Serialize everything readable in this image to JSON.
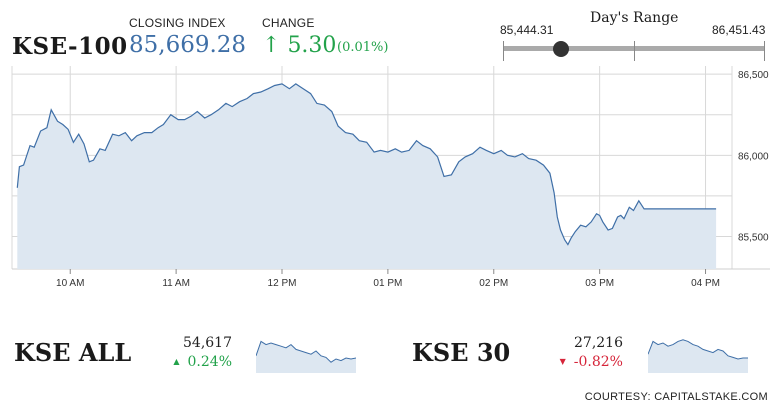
{
  "header": {
    "ticker": "KSE-100",
    "closing_label": "CLOSING INDEX",
    "closing_value": "85,669.28",
    "change_label": "CHANGE",
    "change_arrow": "↑",
    "change_value": "5.30",
    "change_percent": "(0.01%)"
  },
  "days_range": {
    "title": "Day's Range",
    "low": "85,444.31",
    "high": "86,451.43",
    "current_fraction": 0.22
  },
  "chart_data": {
    "type": "area",
    "y_ticks": [
      "86,500",
      "86,000",
      "85,500"
    ],
    "x_ticks": [
      "10 AM",
      "11 AM",
      "12 PM",
      "01 PM",
      "02 PM",
      "03 PM",
      "04 PM"
    ],
    "ylim": [
      85300,
      86550
    ],
    "grid": true,
    "points": [
      [
        9.5,
        85800
      ],
      [
        9.52,
        85930
      ],
      [
        9.56,
        85940
      ],
      [
        9.62,
        86060
      ],
      [
        9.66,
        86050
      ],
      [
        9.72,
        86150
      ],
      [
        9.78,
        86170
      ],
      [
        9.82,
        86280
      ],
      [
        9.88,
        86210
      ],
      [
        9.93,
        86190
      ],
      [
        9.98,
        86160
      ],
      [
        10.03,
        86080
      ],
      [
        10.08,
        86130
      ],
      [
        10.13,
        86070
      ],
      [
        10.18,
        85960
      ],
      [
        10.22,
        85970
      ],
      [
        10.28,
        86040
      ],
      [
        10.33,
        86030
      ],
      [
        10.4,
        86130
      ],
      [
        10.46,
        86120
      ],
      [
        10.52,
        86140
      ],
      [
        10.58,
        86090
      ],
      [
        10.63,
        86120
      ],
      [
        10.7,
        86140
      ],
      [
        10.77,
        86140
      ],
      [
        10.83,
        86170
      ],
      [
        10.88,
        86190
      ],
      [
        10.95,
        86250
      ],
      [
        11.02,
        86220
      ],
      [
        11.08,
        86220
      ],
      [
        11.14,
        86240
      ],
      [
        11.2,
        86270
      ],
      [
        11.27,
        86230
      ],
      [
        11.33,
        86250
      ],
      [
        11.4,
        86280
      ],
      [
        11.47,
        86320
      ],
      [
        11.53,
        86300
      ],
      [
        11.6,
        86330
      ],
      [
        11.67,
        86350
      ],
      [
        11.73,
        86380
      ],
      [
        11.8,
        86390
      ],
      [
        11.87,
        86410
      ],
      [
        11.93,
        86430
      ],
      [
        12.0,
        86440
      ],
      [
        12.07,
        86410
      ],
      [
        12.13,
        86440
      ],
      [
        12.2,
        86410
      ],
      [
        12.27,
        86380
      ],
      [
        12.33,
        86320
      ],
      [
        12.4,
        86310
      ],
      [
        12.47,
        86270
      ],
      [
        12.53,
        86180
      ],
      [
        12.6,
        86140
      ],
      [
        12.67,
        86130
      ],
      [
        12.73,
        86090
      ],
      [
        12.8,
        86080
      ],
      [
        12.87,
        86020
      ],
      [
        12.93,
        86030
      ],
      [
        13.0,
        86020
      ],
      [
        13.07,
        86040
      ],
      [
        13.13,
        86020
      ],
      [
        13.2,
        86030
      ],
      [
        13.27,
        86090
      ],
      [
        13.33,
        86060
      ],
      [
        13.4,
        86040
      ],
      [
        13.47,
        85990
      ],
      [
        13.53,
        85870
      ],
      [
        13.6,
        85880
      ],
      [
        13.67,
        85960
      ],
      [
        13.73,
        85990
      ],
      [
        13.8,
        86010
      ],
      [
        13.87,
        86050
      ],
      [
        13.93,
        86030
      ],
      [
        14.0,
        86010
      ],
      [
        14.07,
        86030
      ],
      [
        14.13,
        86000
      ],
      [
        14.2,
        85990
      ],
      [
        14.27,
        86010
      ],
      [
        14.33,
        85980
      ],
      [
        14.4,
        85970
      ],
      [
        14.47,
        85940
      ],
      [
        14.53,
        85890
      ],
      [
        14.57,
        85770
      ],
      [
        14.6,
        85620
      ],
      [
        14.63,
        85540
      ],
      [
        14.67,
        85480
      ],
      [
        14.7,
        85450
      ],
      [
        14.73,
        85490
      ],
      [
        14.77,
        85530
      ],
      [
        14.82,
        85570
      ],
      [
        14.87,
        85560
      ],
      [
        14.92,
        85590
      ],
      [
        14.97,
        85640
      ],
      [
        15.0,
        85630
      ],
      [
        15.03,
        85590
      ],
      [
        15.08,
        85540
      ],
      [
        15.12,
        85550
      ],
      [
        15.17,
        85620
      ],
      [
        15.2,
        85630
      ],
      [
        15.23,
        85610
      ],
      [
        15.28,
        85680
      ],
      [
        15.32,
        85660
      ],
      [
        15.37,
        85720
      ],
      [
        15.42,
        85670
      ],
      [
        15.47,
        85670
      ],
      [
        15.52,
        85670
      ],
      [
        15.6,
        85670
      ],
      [
        15.7,
        85670
      ],
      [
        15.8,
        85670
      ],
      [
        15.9,
        85670
      ],
      [
        16.0,
        85670
      ],
      [
        16.1,
        85670
      ]
    ]
  },
  "mini_indices": [
    {
      "name": "KSE ALL",
      "value": "54,617",
      "arrow": "▲",
      "change": "0.24%",
      "color": "#22a24a",
      "spark": [
        0.65,
        0.2,
        0.3,
        0.25,
        0.3,
        0.35,
        0.4,
        0.3,
        0.45,
        0.5,
        0.55,
        0.6,
        0.5,
        0.65,
        0.7,
        0.85,
        0.75,
        0.8,
        0.72,
        0.75,
        0.72
      ]
    },
    {
      "name": "KSE 30",
      "value": "27,216",
      "arrow": "▼",
      "change": "-0.82%",
      "color": "#d6253a",
      "spark": [
        0.6,
        0.2,
        0.3,
        0.25,
        0.35,
        0.3,
        0.2,
        0.15,
        0.2,
        0.3,
        0.35,
        0.45,
        0.5,
        0.55,
        0.45,
        0.5,
        0.65,
        0.7,
        0.75,
        0.72,
        0.72
      ]
    }
  ],
  "footer": {
    "courtesy": "COURTESY: CAPITALSTAKE.COM"
  },
  "colors": {
    "line": "#3f6fa7",
    "area": "#dde7f1",
    "grid": "#d8d8d8",
    "up": "#22a24a",
    "down": "#d6253a"
  }
}
